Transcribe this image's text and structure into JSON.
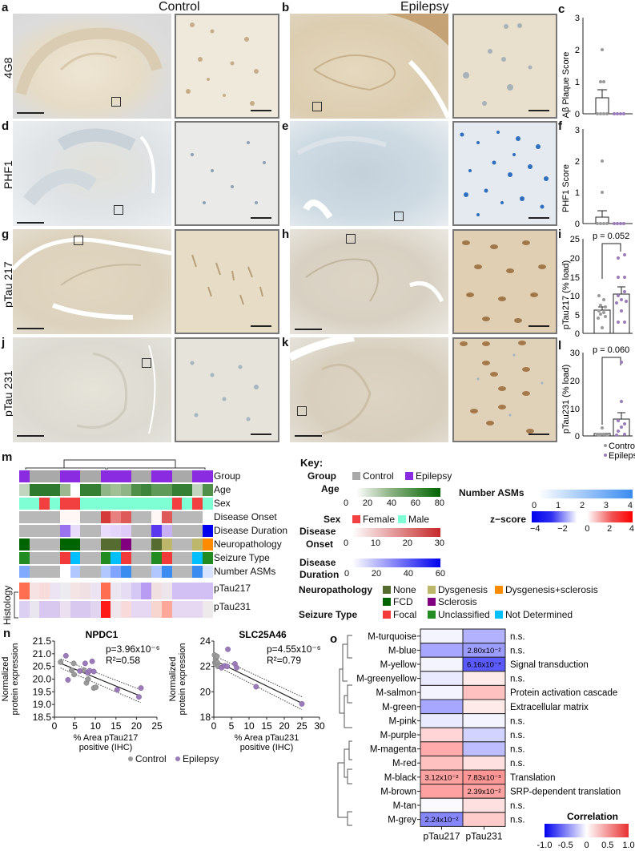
{
  "columns": {
    "control": "Control",
    "epilepsy": "Epilepsy"
  },
  "rows": [
    {
      "stain": "4G8",
      "left_panel": "a",
      "right_panel": "b",
      "chart_panel": "c"
    },
    {
      "stain": "PHF1",
      "left_panel": "d",
      "right_panel": "e",
      "chart_panel": "f"
    },
    {
      "stain": "pTau 217",
      "left_panel": "g",
      "right_panel": "h",
      "chart_panel": "i"
    },
    {
      "stain": "pTau 231",
      "left_panel": "j",
      "right_panel": "k",
      "chart_panel": "l"
    }
  ],
  "colors": {
    "control": "#999999",
    "epilepsy": "#8a2be2",
    "control_point": "#9a9a9a",
    "epilepsy_point": "#9b7bb8",
    "dab_bg": "#e9dfcb",
    "hem_bg": "#dfe3e6"
  },
  "chart_data": [
    {
      "panel": "c",
      "type": "bar",
      "ylabel": "Aβ Plaque Score",
      "ylim": [
        0,
        3
      ],
      "yticks": [
        0,
        1,
        2,
        3
      ],
      "categories": [
        "Control",
        "Epilepsy"
      ],
      "series": [
        {
          "name": "mean",
          "values": [
            0.5,
            0.0
          ]
        },
        {
          "name": "sem",
          "values": [
            0.25,
            0.0
          ]
        }
      ],
      "points": {
        "Control": [
          0,
          0,
          0,
          0,
          0,
          0,
          0,
          1,
          1,
          2
        ],
        "Epilepsy": [
          0,
          0,
          0,
          0,
          0,
          0,
          0,
          0,
          0,
          0,
          0
        ]
      }
    },
    {
      "panel": "f",
      "type": "bar",
      "ylabel": "PHF1 Score",
      "ylim": [
        0,
        3
      ],
      "yticks": [
        0,
        1,
        2,
        3
      ],
      "categories": [
        "Control",
        "Epilepsy"
      ],
      "series": [
        {
          "name": "mean",
          "values": [
            0.2,
            0.0
          ]
        },
        {
          "name": "sem",
          "values": [
            0.2,
            0.0
          ]
        }
      ],
      "points": {
        "Control": [
          0,
          0,
          0,
          0,
          0,
          0,
          0,
          0,
          1,
          2
        ],
        "Epilepsy": [
          0,
          0,
          0,
          0,
          0,
          0,
          0,
          0,
          0,
          0,
          0
        ]
      }
    },
    {
      "panel": "i",
      "type": "bar",
      "ylabel": "pTau217 (% load)",
      "ylim": [
        0,
        25
      ],
      "yticks": [
        0,
        5,
        10,
        15,
        20,
        25
      ],
      "annotation": "p = 0.052",
      "categories": [
        "Control",
        "Epilepsy"
      ],
      "series": [
        {
          "name": "mean",
          "values": [
            6.1,
            10.5
          ]
        },
        {
          "name": "sem",
          "values": [
            0.9,
            1.8
          ]
        }
      ],
      "points": {
        "Control": [
          1.5,
          4,
          4.5,
          5,
          5.5,
          6,
          7,
          7.5,
          9,
          10
        ],
        "Epilepsy": [
          3,
          3,
          6,
          8,
          9,
          9.5,
          10,
          11,
          15,
          15,
          20,
          21
        ]
      }
    },
    {
      "panel": "l",
      "type": "bar",
      "ylabel": "pTau231 (% load)",
      "ylim": [
        0,
        30
      ],
      "yticks": [
        0,
        10,
        20,
        30
      ],
      "annotation": "p = 0.060",
      "categories": [
        "Control",
        "Epilepsy"
      ],
      "series": [
        {
          "name": "mean",
          "values": [
            0.8,
            6.0
          ]
        },
        {
          "name": "sem",
          "values": [
            0.3,
            2.4
          ]
        }
      ],
      "points": {
        "Control": [
          0.2,
          0.3,
          0.5,
          0.5,
          0.7,
          0.8,
          1,
          1,
          3
        ],
        "Epilepsy": [
          0.5,
          1,
          2,
          3,
          5,
          6,
          12,
          25
        ]
      },
      "legend": [
        "Control",
        "Epilepsy"
      ]
    },
    {
      "panel": "n-left",
      "type": "scatter",
      "title": "NPDC1",
      "xlabel": "% Area pTau217 positive (IHC)",
      "ylabel": "Normalized protein expression",
      "xlim": [
        0,
        25
      ],
      "ylim": [
        18.5,
        21.5
      ],
      "xticks": [
        0,
        5,
        10,
        15,
        20,
        25
      ],
      "yticks": [
        18.5,
        19.0,
        19.5,
        20.0,
        20.5,
        21.0,
        21.5
      ],
      "annotation": {
        "p": "p=3.96x10⁻⁶",
        "r2": "R²=0.58"
      },
      "fit": {
        "x": [
          1.5,
          21
        ],
        "y": [
          20.62,
          19.33
        ]
      },
      "series": [
        {
          "name": "Control",
          "x": [
            1.5,
            4.2,
            4.7,
            4.8,
            7.2,
            7.8,
            8.2,
            9.6,
            10.1
          ],
          "y": [
            20.67,
            20.35,
            20.62,
            20.18,
            20.35,
            19.85,
            20.0,
            19.65,
            19.68
          ]
        },
        {
          "name": "Epilepsy",
          "x": [
            2.8,
            3.3,
            6.2,
            7.5,
            8.1,
            8.6,
            9.2,
            9.6,
            15.3,
            20.6,
            21.1
          ],
          "y": [
            20.92,
            19.97,
            20.32,
            20.62,
            20.25,
            20.33,
            20.7,
            20.3,
            19.58,
            19.3,
            19.65
          ]
        }
      ]
    },
    {
      "panel": "n-right",
      "type": "scatter",
      "title": "SLC25A46",
      "xlabel": "% Area pTau231 positive (IHC)",
      "ylabel": "Normalized protein expression",
      "xlim": [
        0,
        30
      ],
      "ylim": [
        18,
        24
      ],
      "xticks": [
        0,
        5,
        10,
        15,
        20,
        25,
        30
      ],
      "yticks": [
        18,
        20,
        22,
        24
      ],
      "annotation": {
        "p": "p=4.55x10⁻⁶",
        "r2": "R²=0.79"
      },
      "fit": {
        "x": [
          0,
          25
        ],
        "y": [
          22.5,
          19.1
        ]
      },
      "series": [
        {
          "name": "Control",
          "x": [
            0.2,
            0.3,
            0.5,
            0.5,
            0.7,
            0.9,
            1.0,
            1.2
          ],
          "y": [
            22.9,
            22.3,
            22.6,
            22.2,
            22.4,
            22.8,
            22.3,
            22.0
          ]
        },
        {
          "name": "Epilepsy",
          "x": [
            2.2,
            3.1,
            3.8,
            4.0,
            6.0,
            6.5,
            12.0,
            25.0
          ],
          "y": [
            21.9,
            22.05,
            22.0,
            23.35,
            22.2,
            21.9,
            20.4,
            19.05
          ]
        }
      ],
      "legend": [
        "Control",
        "Epilepsy"
      ]
    },
    {
      "panel": "o",
      "type": "heatmap",
      "columns": [
        "pTau217",
        "pTau231"
      ],
      "rows": [
        "M-turquoise",
        "M-blue",
        "M-yellow",
        "M-greenyellow",
        "M-salmon",
        "M-green",
        "M-pink",
        "M-purple",
        "M-magenta",
        "M-red",
        "M-black",
        "M-brown",
        "M-tan",
        "M-grey"
      ],
      "values": [
        [
          -0.05,
          -0.35
        ],
        [
          -0.4,
          -0.45
        ],
        [
          -0.05,
          -0.75
        ],
        [
          -0.1,
          0.1
        ],
        [
          -0.05,
          0.3
        ],
        [
          -0.4,
          0.1
        ],
        [
          -0.1,
          -0.05
        ],
        [
          0.2,
          -0.2
        ],
        [
          0.4,
          -0.3
        ],
        [
          0.3,
          0.15
        ],
        [
          0.45,
          0.5
        ],
        [
          0.45,
          0.45
        ],
        [
          -0.02,
          0.15
        ],
        [
          -0.55,
          0.25
        ]
      ],
      "cell_labels": {
        "1_1": "2.80x10⁻²",
        "2_1": "6.16x10⁻⁴",
        "10_0": "3.12x10⁻²",
        "10_1": "7.83x10⁻³",
        "11_1": "2.39x10⁻²",
        "13_0": "2.24x10⁻²"
      },
      "annotations": [
        "n.s.",
        "n.s.",
        "Signal transduction",
        "n.s.",
        "Protein activation cascade",
        "Extracellular matrix",
        "n.s.",
        "n.s.",
        "n.s.",
        "n.s.",
        "Translation",
        "SRP-dependent translation",
        "n.s.",
        "n.s."
      ],
      "colorbar": {
        "title": "Correlation",
        "ticks": [
          "-1.0",
          "-0.5",
          "0",
          "0.5",
          "1.0"
        ]
      }
    }
  ],
  "panel_m": {
    "label": "m",
    "row_labels": [
      "Group",
      "Age",
      "Sex",
      "Disease Onset",
      "Disease Duration",
      "Neuropathology",
      "Seizure Type",
      "Number ASMs",
      "pTau217",
      "pTau231"
    ],
    "histology_label": "Histology",
    "key": {
      "title": "Key:",
      "group": {
        "label": "Group",
        "items": [
          {
            "name": "Control",
            "color": "#a9a9a9"
          },
          {
            "name": "Epilepsy",
            "color": "#8a2be2"
          }
        ]
      },
      "age": {
        "label": "Age",
        "ticks": [
          "0",
          "20",
          "40",
          "60",
          "80"
        ]
      },
      "sex": {
        "label": "Sex",
        "items": [
          {
            "name": "Female",
            "color": "#f24040"
          },
          {
            "name": "Male",
            "color": "#7fffd4"
          }
        ]
      },
      "onset": {
        "label1": "Disease",
        "label2": "Onset",
        "ticks": [
          "0",
          "10",
          "20",
          "30"
        ]
      },
      "duration": {
        "label1": "Disease",
        "label2": "Duration",
        "ticks": [
          "0",
          "20",
          "40",
          "60"
        ]
      },
      "asms": {
        "label": "Number ASMs",
        "ticks": [
          "0",
          "1",
          "2",
          "3",
          "4"
        ]
      },
      "zscore": {
        "label": "z−score",
        "ticks": [
          "−4",
          "−2",
          "0",
          "2",
          "4"
        ]
      },
      "neuropathology": {
        "label": "Neuropathology",
        "items": [
          {
            "name": "None",
            "color": "#556b2f"
          },
          {
            "name": "Dysgenesis",
            "color": "#bdb76b"
          },
          {
            "name": "Dysgenesis+sclerosis",
            "color": "#ff8c00"
          },
          {
            "name": "FCD",
            "color": "#006400"
          },
          {
            "name": "Sclerosis",
            "color": "#800080"
          }
        ]
      },
      "seizure": {
        "label": "Seizure Type",
        "items": [
          {
            "name": "Focal",
            "color": "#f23a3a"
          },
          {
            "name": "Unclassified",
            "color": "#228b22"
          },
          {
            "name": "Not Determined",
            "color": "#00bfff"
          }
        ]
      }
    },
    "grid": [
      [
        "#8a2be2",
        "#a9a9a9",
        "#a9a9a9",
        "#a9a9a9",
        "#8a2be2",
        "#8a2be2",
        "#a9a9a9",
        "#a9a9a9",
        "#8a2be2",
        "#8a2be2",
        "#8a2be2",
        "#a9a9a9",
        "#a9a9a9",
        "#8a2be2",
        "#8a2be2",
        "#a9a9a9",
        "#a9a9a9",
        "#8a2be2",
        "#8a2be2"
      ],
      [
        "#c2d6bf",
        "#2e7a2e",
        "#2e7a2e",
        "#2e7a2e",
        "#9bb890",
        "#ffffff",
        "#357f35",
        "#357f35",
        "#8fb486",
        "#a1c096",
        "#8fb486",
        "#4f8f4a",
        "#3d853d",
        "#5f9a58",
        "#5f9a58",
        "#357f35",
        "#357f35",
        "#c2d6bf",
        "#4f8f4a"
      ],
      [
        "#7fffd4",
        "#7fffd4",
        "#f24040",
        "#7fffd4",
        "#f24040",
        "#f24040",
        "#7fffd4",
        "#7fffd4",
        "#7fffd4",
        "#7fffd4",
        "#7fffd4",
        "#7fffd4",
        "#7fffd4",
        "#7fffd4",
        "#7fffd4",
        "#f24040",
        "#7fffd4",
        "#f24040",
        "#7fffd4"
      ],
      [
        "#b8b8b8",
        "#b8b8b8",
        "#b8b8b8",
        "#b8b8b8",
        "#fff6f6",
        "#fff6f6",
        "#b8b8b8",
        "#b8b8b8",
        "#d43a3a",
        "#e88080",
        "#de5a5a",
        "#b8b8b8",
        "#b8b8b8",
        "#fff6f6",
        "#de5a5a",
        "#b8b8b8",
        "#b8b8b8",
        "#b8b8b8",
        "#ffffff"
      ],
      [
        "#b8b8b8",
        "#b8b8b8",
        "#b8b8b8",
        "#b8b8b8",
        "#9a72f0",
        "#e8dcfb",
        "#b8b8b8",
        "#b8b8b8",
        "#eadcfc",
        "#e4d6fa",
        "#e0ccfa",
        "#b8b8b8",
        "#b8b8b8",
        "#5a38f0",
        "#c8b0f6",
        "#b8b8b8",
        "#b8b8b8",
        "#b8b8b8",
        "#0000ee"
      ],
      [
        "#006400",
        "#b8b8b8",
        "#b8b8b8",
        "#b8b8b8",
        "#006400",
        "#006400",
        "#b8b8b8",
        "#b8b8b8",
        "#556b2f",
        "#556b2f",
        "#800080",
        "#b8b8b8",
        "#b8b8b8",
        "#556b2f",
        "#bdb76b",
        "#b8b8b8",
        "#b8b8b8",
        "#bdb76b",
        "#ff8c00"
      ],
      [
        "#228b22",
        "#b8b8b8",
        "#b8b8b8",
        "#b8b8b8",
        "#f23a3a",
        "#00bfff",
        "#b8b8b8",
        "#b8b8b8",
        "#228b22",
        "#00bfff",
        "#f23a3a",
        "#b8b8b8",
        "#b8b8b8",
        "#228b22",
        "#f23a3a",
        "#b8b8b8",
        "#b8b8b8",
        "#00bfff",
        "#228b22"
      ],
      [
        "#80aaff",
        "#b8b8b8",
        "#b8b8b8",
        "#b8b8b8",
        "#ffffff",
        "#b0c8ff",
        "#b8b8b8",
        "#b8b8b8",
        "#b0c8ff",
        "#80a4ff",
        "#3a8cf0",
        "#b8b8b8",
        "#b8b8b8",
        "#b0c8ff",
        "#3a8cf0",
        "#b8b8b8",
        "#b8b8b8",
        "#3a8cf0",
        "#d8e4ff"
      ],
      [
        "#ff6e50",
        "#f6e2e2",
        "#f8dcdc",
        "#ece4f2",
        "#ecebf0",
        "#f4e4e4",
        "#f0e0e4",
        "#ece4f2",
        "#ff6e50",
        "#ece6f2",
        "#e6ddf4",
        "#d6c8f4",
        "#b89cf4",
        "#f0e0e0",
        "#ece6ec",
        "#d2c0f4",
        "#d2c0f4",
        "#d2c0f4",
        "#d2c0f4"
      ],
      [
        "#dcd0f2",
        "#eae6ef",
        "#d8c8f0",
        "#d8c8f0",
        "#eae0ef",
        "#d8c8f0",
        "#d8c8f0",
        "#e0d4f0",
        "#ff1a1a",
        "#eee6ea",
        "#f8dada",
        "#e6d8f2",
        "#e6d8f2",
        "#f8d6d0",
        "#ffa89a",
        "#e6d8f2",
        "#e6d8f2",
        "#e6d8f2",
        "#eeeaec"
      ]
    ]
  },
  "panel_n": {
    "label": "n"
  },
  "panel_o": {
    "label": "o"
  }
}
